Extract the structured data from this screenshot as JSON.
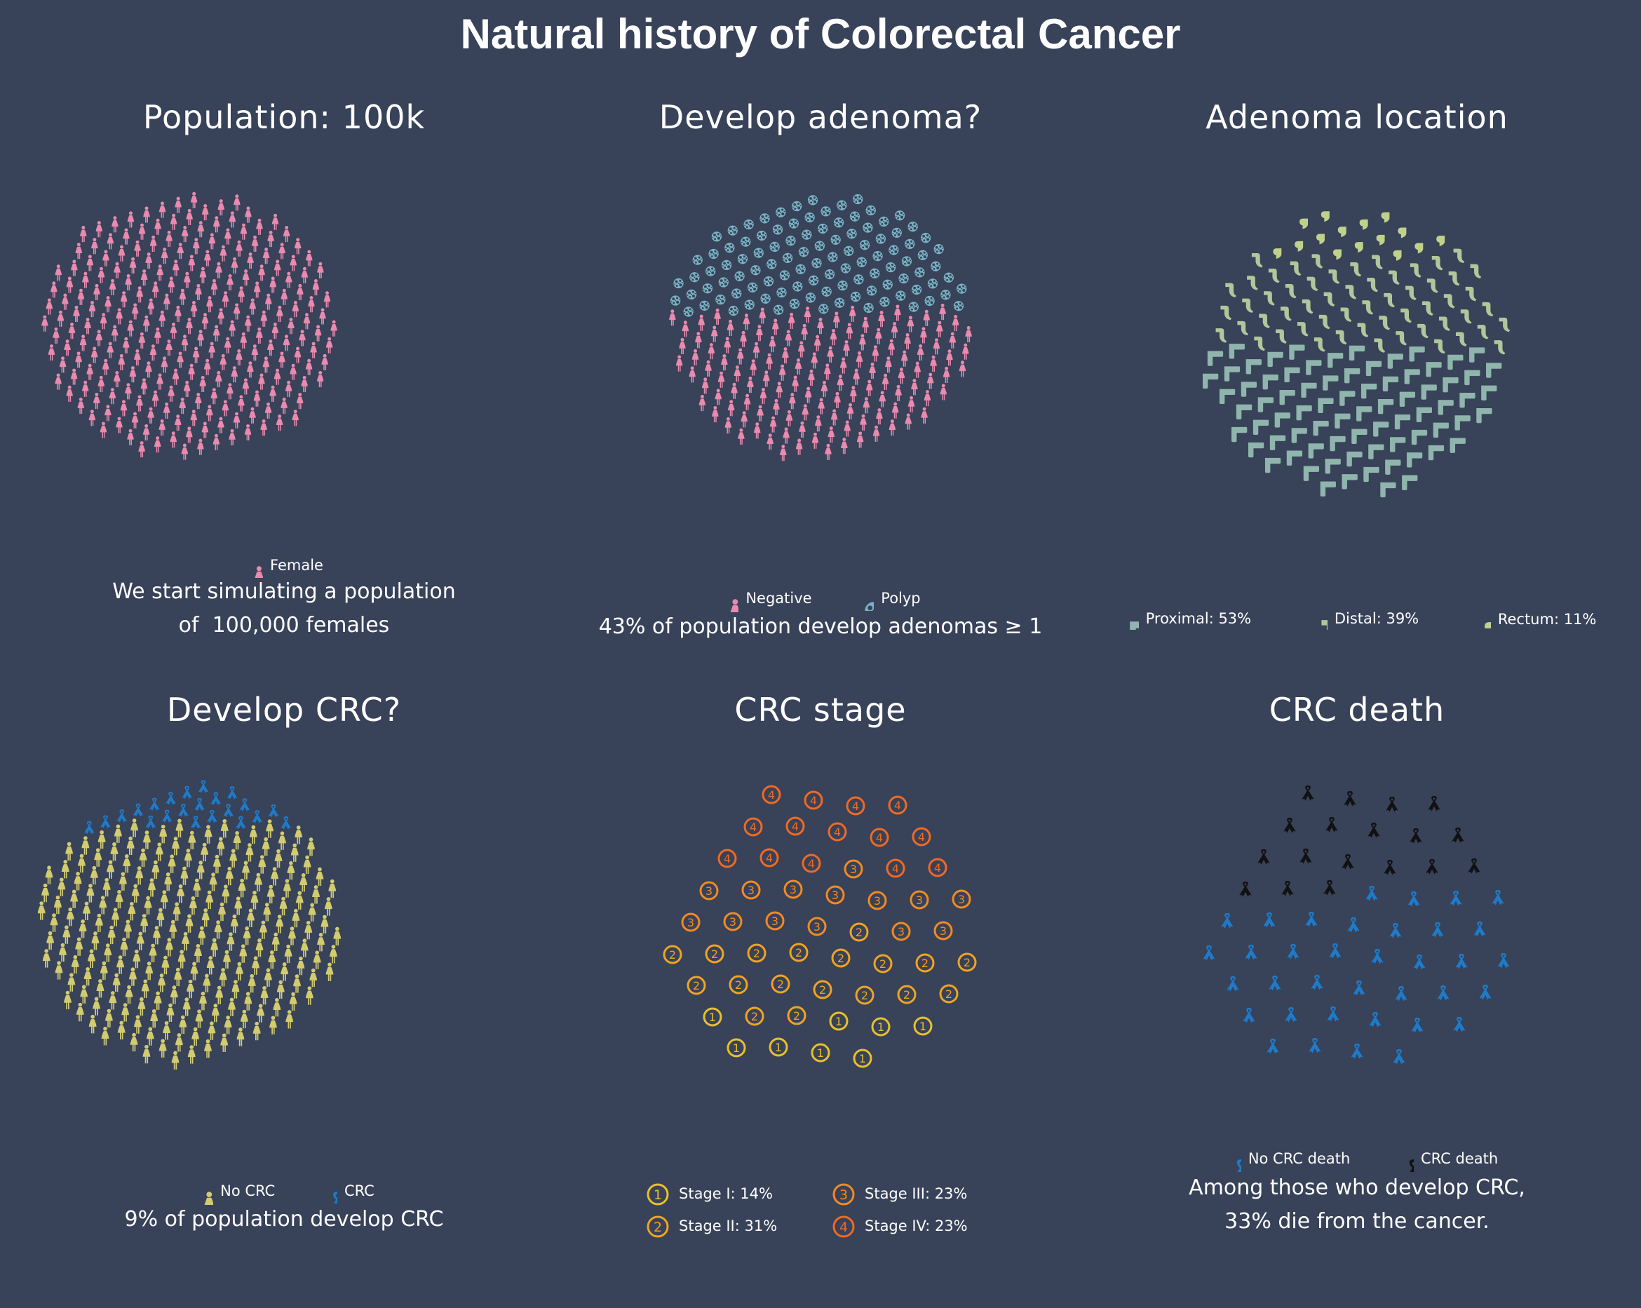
{
  "title": "Natural history of Colorectal Cancer",
  "colors": {
    "background": "#384259",
    "female": "#e98aae",
    "polyp": "#79b3c4",
    "proximal": "#8fb5ad",
    "distal": "#b1c79b",
    "rectum": "#c0d28a",
    "no_crc": "#d2cc6f",
    "crc_ribbon": "#1e7bc9",
    "crc_death": "#111111",
    "stage1": "#e8c02c",
    "stage2": "#f0a420",
    "stage3": "#f38a20",
    "stage4": "#f06a22"
  },
  "panels": {
    "population": {
      "title": "Population: 100k",
      "legend": [
        {
          "label": "Female",
          "icon": "female-icon"
        }
      ],
      "caption": [
        "We start simulating a population",
        "of  100,000 females"
      ]
    },
    "adenoma": {
      "title": "Develop adenoma?",
      "legend": [
        {
          "label": "Negative",
          "icon": "female-icon"
        },
        {
          "label": "Polyp",
          "icon": "polyp-icon"
        }
      ],
      "caption": [
        "43% of population develop adenomas ≥ 1"
      ]
    },
    "location": {
      "title": "Adenoma location",
      "legend": [
        {
          "label": "Proximal: 53%",
          "icon": "proximal-colon-icon"
        },
        {
          "label": "Distal: 39%",
          "icon": "distal-colon-icon"
        },
        {
          "label": "Rectum: 11%",
          "icon": "rectum-icon"
        }
      ]
    },
    "crc": {
      "title": "Develop CRC?",
      "legend": [
        {
          "label": "No CRC",
          "icon": "female-icon"
        },
        {
          "label": "CRC",
          "icon": "ribbon-icon"
        }
      ],
      "caption": [
        "9% of population develop CRC"
      ]
    },
    "stage": {
      "title": "CRC stage",
      "legend": [
        {
          "label": "Stage I: 14%",
          "icon": "stage-1-icon",
          "symbol": "1"
        },
        {
          "label": "Stage III: 23%",
          "icon": "stage-3-icon",
          "symbol": "3"
        },
        {
          "label": "Stage II: 31%",
          "icon": "stage-2-icon",
          "symbol": "2"
        },
        {
          "label": "Stage IV: 23%",
          "icon": "stage-4-icon",
          "symbol": "4"
        }
      ]
    },
    "death": {
      "title": "CRC death",
      "legend": [
        {
          "label": "No CRC death",
          "icon": "ribbon-icon"
        },
        {
          "label": "CRC death",
          "icon": "ribbon-icon"
        }
      ],
      "caption": [
        "Among those who develop CRC,",
        "33% die from the cancer."
      ]
    }
  },
  "chart_data": [
    {
      "type": "waffle",
      "title": "Population: 100k",
      "categories": [
        "Female"
      ],
      "values": [
        100
      ]
    },
    {
      "type": "waffle",
      "title": "Develop adenoma?",
      "categories": [
        "Negative",
        "Polyp"
      ],
      "values": [
        57,
        43
      ]
    },
    {
      "type": "waffle",
      "title": "Adenoma location",
      "categories": [
        "Proximal",
        "Distal",
        "Rectum"
      ],
      "values": [
        53,
        39,
        11
      ]
    },
    {
      "type": "waffle",
      "title": "Develop CRC?",
      "categories": [
        "No CRC",
        "CRC"
      ],
      "values": [
        91,
        9
      ]
    },
    {
      "type": "waffle",
      "title": "CRC stage",
      "categories": [
        "Stage I",
        "Stage II",
        "Stage III",
        "Stage IV"
      ],
      "values": [
        14,
        31,
        23,
        23
      ]
    },
    {
      "type": "waffle",
      "title": "CRC death",
      "categories": [
        "No CRC death",
        "CRC death"
      ],
      "values": [
        67,
        33
      ]
    }
  ]
}
